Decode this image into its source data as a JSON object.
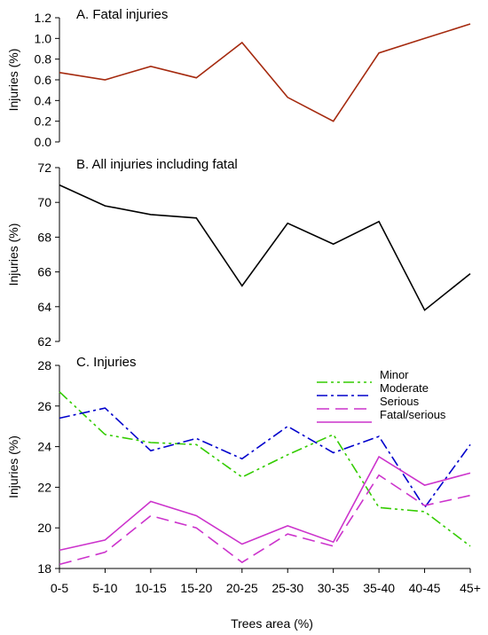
{
  "chart_data": [
    {
      "type": "line",
      "title": "A. Fatal injuries",
      "xlabel": "",
      "ylabel": "Injuries (%)",
      "categories": [
        "0-5",
        "5-10",
        "10-15",
        "15-20",
        "20-25",
        "25-30",
        "30-35",
        "35-40",
        "40-45",
        "45+"
      ],
      "ylim": [
        0.0,
        1.2
      ],
      "yticks": [
        "0.0",
        "0.2",
        "0.4",
        "0.6",
        "0.8",
        "1.0",
        "1.2"
      ],
      "grid": false,
      "series": [
        {
          "values": [
            0.67,
            0.6,
            0.73,
            0.62,
            0.96,
            0.43,
            0.2,
            0.86,
            1.0,
            1.14
          ],
          "color": "#a52a0f",
          "dash": "solid"
        }
      ]
    },
    {
      "type": "line",
      "title": "B. All injuries including fatal",
      "xlabel": "",
      "ylabel": "Injuries (%)",
      "categories": [
        "0-5",
        "5-10",
        "10-15",
        "15-20",
        "20-25",
        "25-30",
        "30-35",
        "35-40",
        "40-45",
        "45+"
      ],
      "ylim": [
        62,
        72
      ],
      "yticks": [
        "62",
        "64",
        "66",
        "68",
        "70",
        "72"
      ],
      "grid": false,
      "series": [
        {
          "values": [
            71.0,
            69.8,
            69.3,
            69.1,
            65.2,
            68.8,
            67.6,
            68.9,
            63.8,
            65.9
          ],
          "color": "#000000",
          "dash": "solid"
        }
      ]
    },
    {
      "type": "line",
      "title": "C. Injuries",
      "xlabel": "Trees area (%)",
      "ylabel": "Injuries (%)",
      "categories": [
        "0-5",
        "5-10",
        "10-15",
        "15-20",
        "20-25",
        "25-30",
        "30-35",
        "35-40",
        "40-45",
        "45+"
      ],
      "ylim": [
        18,
        28
      ],
      "yticks": [
        "18",
        "20",
        "22",
        "24",
        "26",
        "28"
      ],
      "grid": false,
      "legend_position": "top-right",
      "series": [
        {
          "name": "Minor",
          "values": [
            26.7,
            24.6,
            24.2,
            24.1,
            22.5,
            23.6,
            24.6,
            21.0,
            20.8,
            19.1
          ],
          "color": "#33cc00",
          "dash": "dashdotdot"
        },
        {
          "name": "Moderate",
          "values": [
            25.4,
            25.9,
            23.8,
            24.4,
            23.4,
            25.0,
            23.7,
            24.5,
            21.0,
            24.1
          ],
          "color": "#0000cc",
          "dash": "dashdot"
        },
        {
          "name": "Serious",
          "values": [
            18.2,
            18.8,
            20.6,
            20.0,
            18.3,
            19.7,
            19.1,
            22.6,
            21.1,
            21.6
          ],
          "color": "#cc33cc",
          "dash": "dash"
        },
        {
          "name": "Fatal/serious",
          "values": [
            18.9,
            19.4,
            21.3,
            20.6,
            19.2,
            20.1,
            19.3,
            23.5,
            22.1,
            22.7
          ],
          "color": "#cc33cc",
          "dash": "solid"
        }
      ]
    }
  ]
}
